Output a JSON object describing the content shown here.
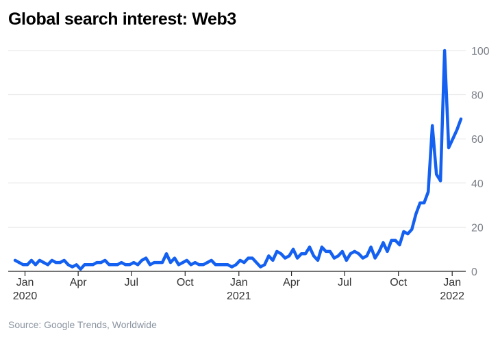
{
  "chart_data": {
    "type": "line",
    "title": "Global search interest: Web3",
    "source": "Source: Google Trends, Worldwide",
    "xlabel": "",
    "ylabel": "",
    "ylim": [
      0,
      100
    ],
    "grid": true,
    "y_axis_side": "right",
    "y_ticks": [
      0,
      20,
      40,
      60,
      80,
      100
    ],
    "x_ticks": [
      {
        "date": "2020-01-01",
        "label": "Jan",
        "sublabel": "2020"
      },
      {
        "date": "2020-04-01",
        "label": "Apr",
        "sublabel": ""
      },
      {
        "date": "2020-07-01",
        "label": "Jul",
        "sublabel": ""
      },
      {
        "date": "2020-10-01",
        "label": "Oct",
        "sublabel": ""
      },
      {
        "date": "2021-01-01",
        "label": "Jan",
        "sublabel": "2021"
      },
      {
        "date": "2021-04-01",
        "label": "Apr",
        "sublabel": ""
      },
      {
        "date": "2021-07-01",
        "label": "Jul",
        "sublabel": ""
      },
      {
        "date": "2021-10-01",
        "label": "Oct",
        "sublabel": ""
      },
      {
        "date": "2022-01-01",
        "label": "Jan",
        "sublabel": "2022"
      }
    ],
    "series": [
      {
        "color": "#1460f0",
        "x": [
          "2019-12-15",
          "2019-12-22",
          "2019-12-29",
          "2020-01-05",
          "2020-01-12",
          "2020-01-19",
          "2020-01-26",
          "2020-02-02",
          "2020-02-09",
          "2020-02-16",
          "2020-02-23",
          "2020-03-01",
          "2020-03-08",
          "2020-03-15",
          "2020-03-22",
          "2020-03-29",
          "2020-04-05",
          "2020-04-12",
          "2020-04-19",
          "2020-04-26",
          "2020-05-03",
          "2020-05-10",
          "2020-05-17",
          "2020-05-24",
          "2020-05-31",
          "2020-06-07",
          "2020-06-14",
          "2020-06-21",
          "2020-06-28",
          "2020-07-05",
          "2020-07-12",
          "2020-07-19",
          "2020-07-26",
          "2020-08-02",
          "2020-08-09",
          "2020-08-16",
          "2020-08-23",
          "2020-08-30",
          "2020-09-06",
          "2020-09-13",
          "2020-09-20",
          "2020-09-27",
          "2020-10-04",
          "2020-10-11",
          "2020-10-18",
          "2020-10-25",
          "2020-11-01",
          "2020-11-08",
          "2020-11-15",
          "2020-11-22",
          "2020-11-29",
          "2020-12-06",
          "2020-12-13",
          "2020-12-20",
          "2020-12-27",
          "2021-01-03",
          "2021-01-10",
          "2021-01-17",
          "2021-01-24",
          "2021-01-31",
          "2021-02-07",
          "2021-02-14",
          "2021-02-21",
          "2021-02-28",
          "2021-03-07",
          "2021-03-14",
          "2021-03-21",
          "2021-03-28",
          "2021-04-04",
          "2021-04-11",
          "2021-04-18",
          "2021-04-25",
          "2021-05-02",
          "2021-05-09",
          "2021-05-16",
          "2021-05-23",
          "2021-05-30",
          "2021-06-06",
          "2021-06-13",
          "2021-06-20",
          "2021-06-27",
          "2021-07-04",
          "2021-07-11",
          "2021-07-18",
          "2021-07-25",
          "2021-08-01",
          "2021-08-08",
          "2021-08-15",
          "2021-08-22",
          "2021-08-29",
          "2021-09-05",
          "2021-09-12",
          "2021-09-19",
          "2021-09-26",
          "2021-10-03",
          "2021-10-10",
          "2021-10-17",
          "2021-10-24",
          "2021-10-31",
          "2021-11-07",
          "2021-11-14",
          "2021-11-21",
          "2021-11-28",
          "2021-12-05",
          "2021-12-12",
          "2021-12-19",
          "2021-12-26",
          "2022-01-02",
          "2022-01-09",
          "2022-01-16"
        ],
        "y": [
          5,
          4,
          3,
          3,
          5,
          3,
          5,
          4,
          3,
          5,
          4,
          4,
          5,
          3,
          2,
          3,
          1,
          3,
          3,
          3,
          4,
          4,
          5,
          3,
          3,
          3,
          4,
          3,
          3,
          4,
          3,
          5,
          6,
          3,
          4,
          4,
          4,
          8,
          4,
          6,
          3,
          4,
          5,
          3,
          4,
          3,
          3,
          4,
          5,
          3,
          3,
          3,
          3,
          2,
          3,
          5,
          4,
          6,
          6,
          4,
          2,
          3,
          7,
          5,
          9,
          8,
          6,
          7,
          10,
          6,
          8,
          8,
          11,
          7,
          5,
          11,
          9,
          9,
          6,
          7,
          9,
          5,
          8,
          9,
          8,
          6,
          7,
          11,
          6,
          9,
          13,
          9,
          14,
          14,
          12,
          18,
          17,
          19,
          26,
          31,
          31,
          36,
          66,
          44,
          41,
          100,
          56,
          60,
          64,
          69
        ]
      }
    ]
  }
}
